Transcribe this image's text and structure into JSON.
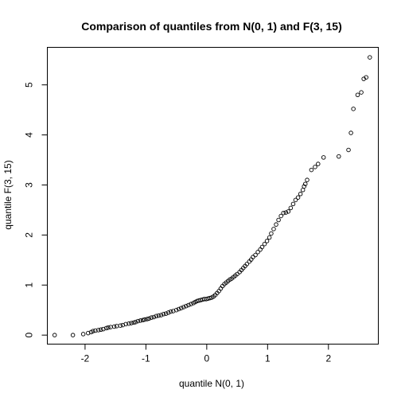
{
  "chart_data": {
    "type": "scatter",
    "title": "Comparison of quantiles from N(0, 1) and F(3, 15)",
    "xlabel": "quantile N(0, 1)",
    "ylabel": "quantile F(3, 15)",
    "xlim": [
      -2.62,
      2.82
    ],
    "ylim": [
      -0.18,
      5.75
    ],
    "x_ticks": [
      -2,
      -1,
      0,
      1,
      2
    ],
    "y_ticks": [
      0,
      1,
      2,
      3,
      4,
      5
    ],
    "grid": false,
    "marker": "open-circle",
    "x": [
      -2.5,
      -2.2,
      -2.03,
      -1.95,
      -1.9,
      -1.87,
      -1.83,
      -1.78,
      -1.74,
      -1.7,
      -1.65,
      -1.62,
      -1.58,
      -1.52,
      -1.48,
      -1.42,
      -1.38,
      -1.33,
      -1.28,
      -1.24,
      -1.2,
      -1.17,
      -1.13,
      -1.09,
      -1.05,
      -1.02,
      -0.98,
      -0.95,
      -0.91,
      -0.87,
      -0.83,
      -0.79,
      -0.75,
      -0.71,
      -0.67,
      -0.63,
      -0.59,
      -0.55,
      -0.5,
      -0.46,
      -0.42,
      -0.38,
      -0.34,
      -0.3,
      -0.26,
      -0.22,
      -0.19,
      -0.16,
      -0.13,
      -0.1,
      -0.07,
      -0.04,
      -0.01,
      0.02,
      0.05,
      0.08,
      0.11,
      0.14,
      0.17,
      0.2,
      0.23,
      0.26,
      0.29,
      0.32,
      0.35,
      0.38,
      0.41,
      0.44,
      0.47,
      0.5,
      0.54,
      0.57,
      0.6,
      0.63,
      0.66,
      0.7,
      0.73,
      0.76,
      0.8,
      0.84,
      0.88,
      0.91,
      0.95,
      0.99,
      1.03,
      1.06,
      1.1,
      1.14,
      1.18,
      1.22,
      1.26,
      1.3,
      1.34,
      1.38,
      1.42,
      1.46,
      1.5,
      1.54,
      1.58,
      1.6,
      1.62,
      1.65,
      1.72,
      1.78,
      1.83,
      1.92,
      2.17,
      2.33,
      2.37,
      2.41,
      2.48,
      2.54,
      2.58,
      2.62,
      2.68
    ],
    "y": [
      0.0,
      0.0,
      0.02,
      0.04,
      0.06,
      0.08,
      0.09,
      0.1,
      0.11,
      0.12,
      0.14,
      0.15,
      0.16,
      0.17,
      0.18,
      0.19,
      0.2,
      0.22,
      0.23,
      0.24,
      0.25,
      0.26,
      0.28,
      0.29,
      0.3,
      0.31,
      0.32,
      0.33,
      0.35,
      0.36,
      0.38,
      0.39,
      0.4,
      0.42,
      0.43,
      0.45,
      0.47,
      0.48,
      0.5,
      0.52,
      0.54,
      0.56,
      0.58,
      0.6,
      0.62,
      0.64,
      0.66,
      0.68,
      0.69,
      0.7,
      0.71,
      0.72,
      0.72,
      0.73,
      0.74,
      0.75,
      0.77,
      0.8,
      0.84,
      0.88,
      0.93,
      0.98,
      1.02,
      1.05,
      1.08,
      1.11,
      1.13,
      1.16,
      1.19,
      1.22,
      1.26,
      1.3,
      1.34,
      1.38,
      1.42,
      1.47,
      1.51,
      1.56,
      1.6,
      1.66,
      1.71,
      1.76,
      1.82,
      1.88,
      1.95,
      2.03,
      2.12,
      2.21,
      2.3,
      2.38,
      2.44,
      2.45,
      2.47,
      2.54,
      2.62,
      2.7,
      2.75,
      2.82,
      2.9,
      2.97,
      3.02,
      3.1,
      3.3,
      3.36,
      3.42,
      3.55,
      3.57,
      3.7,
      4.04,
      4.52,
      4.8,
      4.85,
      5.12,
      5.15,
      5.55
    ]
  }
}
